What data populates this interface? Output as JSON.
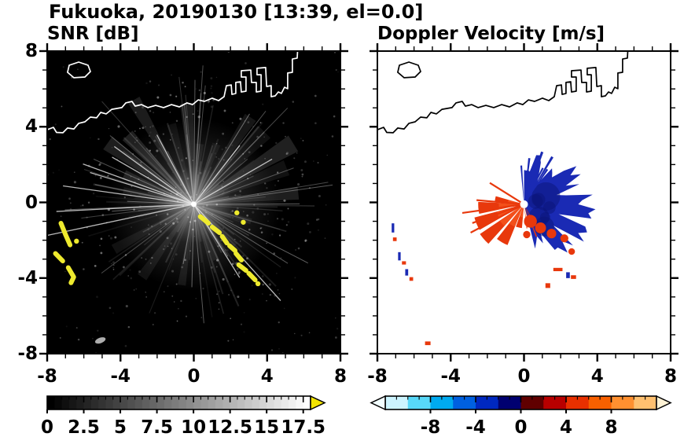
{
  "title": "Fukuoka, 20190130 [13:39, el=0.0]",
  "axes": {
    "x_tick_labels": [
      "-8",
      "-4",
      "0",
      "4",
      "8"
    ],
    "x_tick_values": [
      -8,
      -4,
      0,
      4,
      8
    ],
    "y_tick_labels": [
      "8",
      "4",
      "0",
      "-4",
      "-8"
    ],
    "y_tick_values": [
      8,
      4,
      0,
      -4,
      -8
    ]
  },
  "coastline": {
    "color_on_dark": "#ffffff",
    "color_on_light": "#000000",
    "island": [
      [
        -6.8,
        7.25
      ],
      [
        -6.28,
        7.42
      ],
      [
        -5.77,
        7.25
      ],
      [
        -5.64,
        6.92
      ],
      [
        -5.94,
        6.63
      ],
      [
        -6.54,
        6.59
      ],
      [
        -6.89,
        6.88
      ]
    ],
    "mainland": [
      [
        -8,
        3.84
      ],
      [
        -7.66,
        3.97
      ],
      [
        -7.49,
        3.7
      ],
      [
        -7.14,
        3.68
      ],
      [
        -6.89,
        3.93
      ],
      [
        -6.54,
        3.88
      ],
      [
        -6.28,
        4.18
      ],
      [
        -5.94,
        4.26
      ],
      [
        -5.64,
        4.51
      ],
      [
        -5.3,
        4.47
      ],
      [
        -5.08,
        4.76
      ],
      [
        -4.78,
        4.68
      ],
      [
        -4.48,
        4.92
      ],
      [
        -3.93,
        5.01
      ],
      [
        -3.71,
        5.26
      ],
      [
        -3.37,
        5.34
      ],
      [
        -3.2,
        5.09
      ],
      [
        -2.85,
        5.17
      ],
      [
        -2.51,
        5.01
      ],
      [
        -2.08,
        5.13
      ],
      [
        -1.65,
        5.01
      ],
      [
        -1.22,
        5.17
      ],
      [
        -0.79,
        5.05
      ],
      [
        -0.37,
        5.26
      ],
      [
        -0.07,
        5.17
      ],
      [
        0.24,
        5.42
      ],
      [
        0.58,
        5.34
      ],
      [
        1.01,
        5.51
      ],
      [
        1.35,
        5.38
      ],
      [
        1.65,
        5.59
      ],
      [
        1.78,
        6.17
      ],
      [
        2.04,
        6.21
      ],
      [
        2.08,
        5.71
      ],
      [
        2.29,
        5.76
      ],
      [
        2.29,
        6.34
      ],
      [
        2.55,
        6.38
      ],
      [
        2.59,
        5.84
      ],
      [
        2.85,
        5.88
      ],
      [
        2.85,
        6.63
      ],
      [
        2.59,
        6.63
      ],
      [
        2.59,
        6.96
      ],
      [
        3.11,
        7.0
      ],
      [
        3.15,
        6.34
      ],
      [
        3.41,
        6.34
      ],
      [
        3.41,
        5.84
      ],
      [
        3.67,
        5.88
      ],
      [
        3.67,
        6.75
      ],
      [
        3.45,
        6.75
      ],
      [
        3.45,
        7.09
      ],
      [
        3.92,
        7.13
      ],
      [
        3.97,
        6.13
      ],
      [
        4.22,
        6.17
      ],
      [
        4.22,
        5.59
      ],
      [
        4.44,
        5.63
      ],
      [
        4.61,
        5.84
      ],
      [
        4.78,
        5.76
      ],
      [
        4.95,
        6.09
      ],
      [
        5.12,
        6.01
      ],
      [
        5.12,
        6.84
      ],
      [
        5.38,
        6.88
      ],
      [
        5.38,
        7.58
      ],
      [
        5.64,
        7.63
      ],
      [
        5.68,
        8.3
      ]
    ]
  },
  "chart_data": [
    {
      "type": "heatmap",
      "title": "SNR [dB]",
      "xlabel": "",
      "ylabel": "",
      "xlim": [
        -8,
        8
      ],
      "ylim": [
        -8,
        8
      ],
      "x_ticks": [
        -8,
        -4,
        0,
        4,
        8
      ],
      "y_ticks": [
        -8,
        -4,
        0,
        4,
        8
      ],
      "background_color": "#000000",
      "radar_center": [
        0,
        -0.1
      ],
      "description": "Radar SNR PPI on black background: gray radial beam streaks and speckle noise radiating from the radar at the origin; bright yellow high-SNR ground clutter arcs southwest of the radar and in a chain toward the southeast; coastline of Hakata Bay overlaid in white.",
      "colorbar": {
        "range": [
          0,
          18
        ],
        "tick_values": [
          0,
          2.5,
          5,
          7.5,
          10,
          12.5,
          15,
          17.5
        ],
        "tick_labels": [
          "0",
          "2.5",
          "5",
          "7.5",
          "10",
          "12.5",
          "15",
          "17.5"
        ],
        "gradient": [
          "#000000",
          "#ffffff"
        ],
        "over_arrow_color": "#f2e400"
      },
      "rays": {
        "seed": 777,
        "faint_count": 85,
        "medium_count": 30,
        "bright": [
          [
            168,
            190
          ],
          [
            177,
            175
          ],
          [
            188,
            168
          ],
          [
            200,
            150
          ],
          [
            210,
            120
          ],
          [
            48,
            165
          ],
          [
            58,
            110
          ],
          [
            -30,
            115
          ],
          [
            -52,
            95
          ],
          [
            -118,
            100
          ],
          [
            -144,
            125
          ],
          [
            -163,
            138
          ]
        ]
      },
      "clutter": {
        "color": "#eeea2e",
        "strokes": [
          [
            [
              -7.25,
              -1.1
            ],
            [
              -7.0,
              -1.7
            ],
            [
              -6.75,
              -2.25
            ]
          ],
          [
            [
              -7.55,
              -2.7
            ],
            [
              -7.15,
              -3.1
            ]
          ],
          [
            [
              -6.85,
              -3.45
            ],
            [
              -6.55,
              -3.95
            ],
            [
              -6.7,
              -4.25
            ]
          ],
          [
            [
              0.35,
              -0.75
            ],
            [
              0.8,
              -1.1
            ]
          ],
          [
            [
              1.0,
              -1.3
            ],
            [
              1.4,
              -1.6
            ]
          ],
          [
            [
              1.55,
              -1.8
            ],
            [
              1.8,
              -2.15
            ]
          ],
          [
            [
              1.95,
              -2.3
            ],
            [
              2.25,
              -2.55
            ]
          ],
          [
            [
              2.3,
              -2.7
            ],
            [
              2.6,
              -3.05
            ]
          ],
          [
            [
              2.45,
              -3.3
            ],
            [
              2.85,
              -3.6
            ]
          ],
          [
            [
              3.0,
              -3.75
            ],
            [
              3.35,
              -4.1
            ]
          ]
        ],
        "dots": [
          [
            2.35,
            -0.55
          ],
          [
            2.7,
            -1.05
          ],
          [
            3.5,
            -4.3
          ],
          [
            -6.4,
            -2.05
          ]
        ],
        "smudge": [
          -5.1,
          -7.3
        ]
      }
    },
    {
      "type": "heatmap",
      "title": "Doppler Velocity [m/s]",
      "xlabel": "",
      "ylabel": "",
      "xlim": [
        -8,
        8
      ],
      "ylim": [
        -8,
        8
      ],
      "x_ticks": [
        -8,
        -4,
        0,
        4,
        8
      ],
      "y_ticks": [
        -8,
        -4,
        0,
        4,
        8
      ],
      "background_color": "#ffffff",
      "radar_center": [
        0,
        -0.1
      ],
      "description": "Doppler velocity PPI on white background: negative (blue) velocities in a spiky region east/northeast of the radar, positive (red/orange) velocity fan southwest of the radar; small red/blue clutter specks matching the SNR clutter locations; coastline overlaid in black.",
      "colorbar": {
        "range": [
          -12,
          12
        ],
        "tick_values": [
          -8,
          -4,
          0,
          4,
          8
        ],
        "tick_labels": [
          "-8",
          "-4",
          "0",
          "4",
          "8"
        ],
        "segment_colors": [
          "#ccf4ff",
          "#58d8f8",
          "#00aaf0",
          "#0060e0",
          "#0028c0",
          "#000070",
          "#600000",
          "#b80000",
          "#e83000",
          "#f86000",
          "#ff9030",
          "#ffc070"
        ],
        "under_arrow_color": "#f2feff",
        "over_arrow_color": "#fff3d6"
      },
      "negative_color": "#1a2ab4",
      "negative_dark": "#0a1478",
      "positive_color": "#e8380c",
      "positive_bright": "#f5551e",
      "fan_wedges": [
        [
          112,
          128,
          2.4
        ],
        [
          132,
          146,
          2.9
        ],
        [
          150,
          165,
          2.8
        ],
        [
          168,
          183,
          2.5
        ],
        [
          186,
          196,
          1.6
        ],
        [
          95,
          110,
          1.3
        ]
      ],
      "fan_rays": [
        [
          152,
          3.3
        ],
        [
          160,
          3.0
        ],
        [
          172,
          3.4
        ],
        [
          185,
          2.6
        ],
        [
          212,
          2.2
        ]
      ],
      "blue_blob": {
        "seed": 424,
        "a1": -88,
        "a2": 78,
        "base_r": 2.2,
        "dir_bias_deg": 8,
        "bias": 0.45
      },
      "blue_spikes": {
        "a1": -96,
        "a2": -52,
        "count": 9,
        "min_r": 1.6,
        "max_r": 3.1
      },
      "red_patches": [
        [
          0.35,
          -1.0,
          0.35
        ],
        [
          0.9,
          -1.35,
          0.3
        ],
        [
          1.5,
          -1.65,
          0.26
        ],
        [
          2.2,
          -1.9,
          0.22
        ],
        [
          0.15,
          -1.7,
          0.2
        ],
        [
          2.6,
          -2.6,
          0.18
        ]
      ],
      "specks": [
        [
          -7.15,
          -1.35,
          0.14,
          0.5,
          "b"
        ],
        [
          -7.05,
          -1.95,
          0.2,
          0.2,
          "r"
        ],
        [
          -6.8,
          -2.85,
          0.14,
          0.45,
          "b"
        ],
        [
          -6.55,
          -3.2,
          0.22,
          0.18,
          "r"
        ],
        [
          -6.4,
          -3.7,
          0.16,
          0.35,
          "b"
        ],
        [
          -6.15,
          -4.05,
          0.2,
          0.2,
          "r"
        ],
        [
          1.85,
          -3.55,
          0.5,
          0.18,
          "r"
        ],
        [
          2.4,
          -3.85,
          0.2,
          0.32,
          "b"
        ],
        [
          2.7,
          -3.95,
          0.28,
          0.2,
          "r"
        ],
        [
          1.3,
          -4.4,
          0.26,
          0.26,
          "r"
        ],
        [
          -5.25,
          -7.45,
          0.3,
          0.2,
          "r"
        ]
      ]
    }
  ]
}
